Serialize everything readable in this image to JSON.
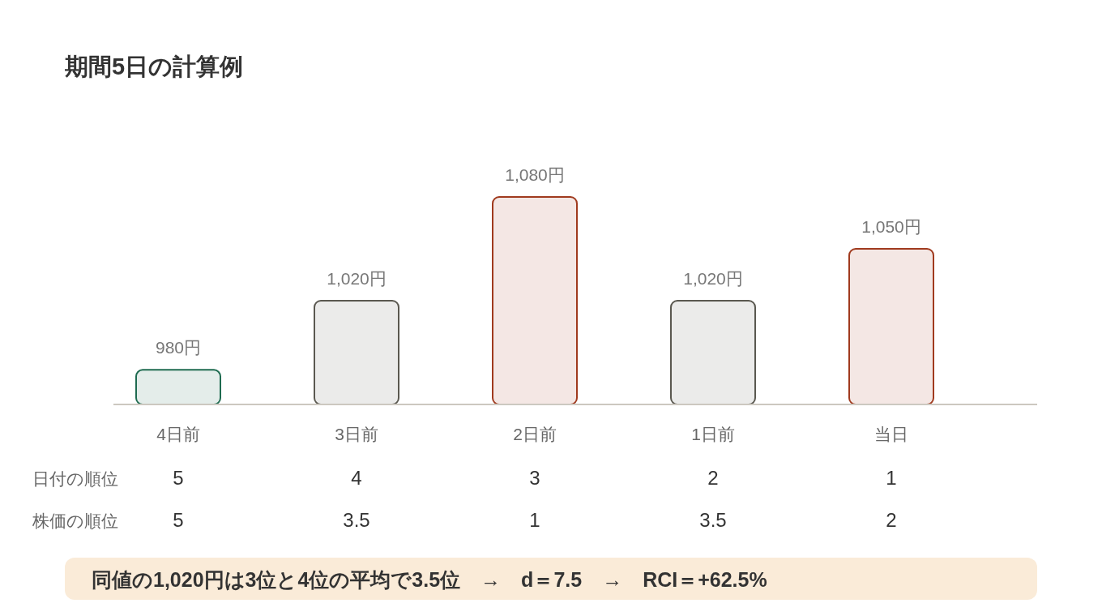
{
  "chart_data": {
    "type": "bar",
    "title": "期間5日の計算例",
    "categories": [
      "4日前",
      "3日前",
      "2日前",
      "1日前",
      "当日"
    ],
    "values": [
      980,
      1020,
      1080,
      1020,
      1050
    ],
    "value_labels": [
      "980円",
      "1,020円",
      "1,080円",
      "1,020円",
      "1,050円"
    ],
    "colors": [
      "#1e6b50",
      "#5a5850",
      "#a03a1e",
      "#5a5850",
      "#a03a1e"
    ],
    "ylim": [
      960,
      1080
    ],
    "tick_labels": "x",
    "annotations": [
      "日付の順位",
      "5",
      "4",
      "3",
      "2",
      "1",
      "株価の順位",
      "5",
      "3.5",
      "1",
      "3.5",
      "2",
      "同値の1,020円は3位と4位の平均で3.5位　→　d＝7.5　→　RCI＝+62.5%"
    ]
  }
}
